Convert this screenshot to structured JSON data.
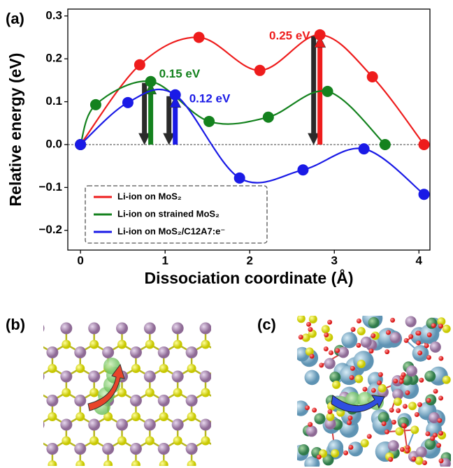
{
  "panel_labels": [
    "(a)",
    "(b)",
    "(c)"
  ],
  "chart_data": {
    "type": "line",
    "x_label": "Dissociation coordinate (Å)",
    "y_label": "Relative energy (eV)",
    "xlim": [
      -0.15,
      4.13
    ],
    "xticks": [
      0,
      1,
      2,
      3,
      4
    ],
    "ylim": [
      -0.246,
      0.316
    ],
    "yticks": [
      {
        "value": -0.2,
        "label": "−0.2"
      },
      {
        "value": -0.1,
        "label": "−0.1"
      },
      {
        "value": 0,
        "label": "0.0"
      },
      {
        "value": 0.1,
        "label": "0.1"
      },
      {
        "value": 0.2,
        "label": "0.2"
      },
      {
        "value": 0.3,
        "label": "0.3"
      }
    ],
    "legend": "lower left",
    "series": [
      {
        "name": "Li-ion on MoS₂",
        "color": "#ee1c1c",
        "annotation": "0.25 eV",
        "x": [
          0,
          0.7,
          1.4,
          2.12,
          2.83,
          3.45,
          4.06
        ],
        "values": [
          0,
          0.186,
          0.25,
          0.173,
          0.256,
          0.158,
          0
        ]
      },
      {
        "name": "Li-ion on strained MoS₂",
        "color": "#14821e",
        "annotation": "0.15 eV",
        "x": [
          0,
          0.18,
          0.83,
          1.52,
          2.22,
          2.92,
          3.6
        ],
        "values": [
          0,
          0.093,
          0.147,
          0.054,
          0.064,
          0.124,
          0
        ]
      },
      {
        "name": "Li-ion on MoS₂/C12A7:e⁻",
        "color": "#1a1ae6",
        "annotation": "0.12 eV",
        "x": [
          0,
          0.56,
          1.12,
          1.88,
          2.63,
          3.35,
          4.06
        ],
        "values": [
          0,
          0.098,
          0.116,
          -0.078,
          -0.059,
          -0.01,
          -0.116
        ]
      }
    ]
  }
}
